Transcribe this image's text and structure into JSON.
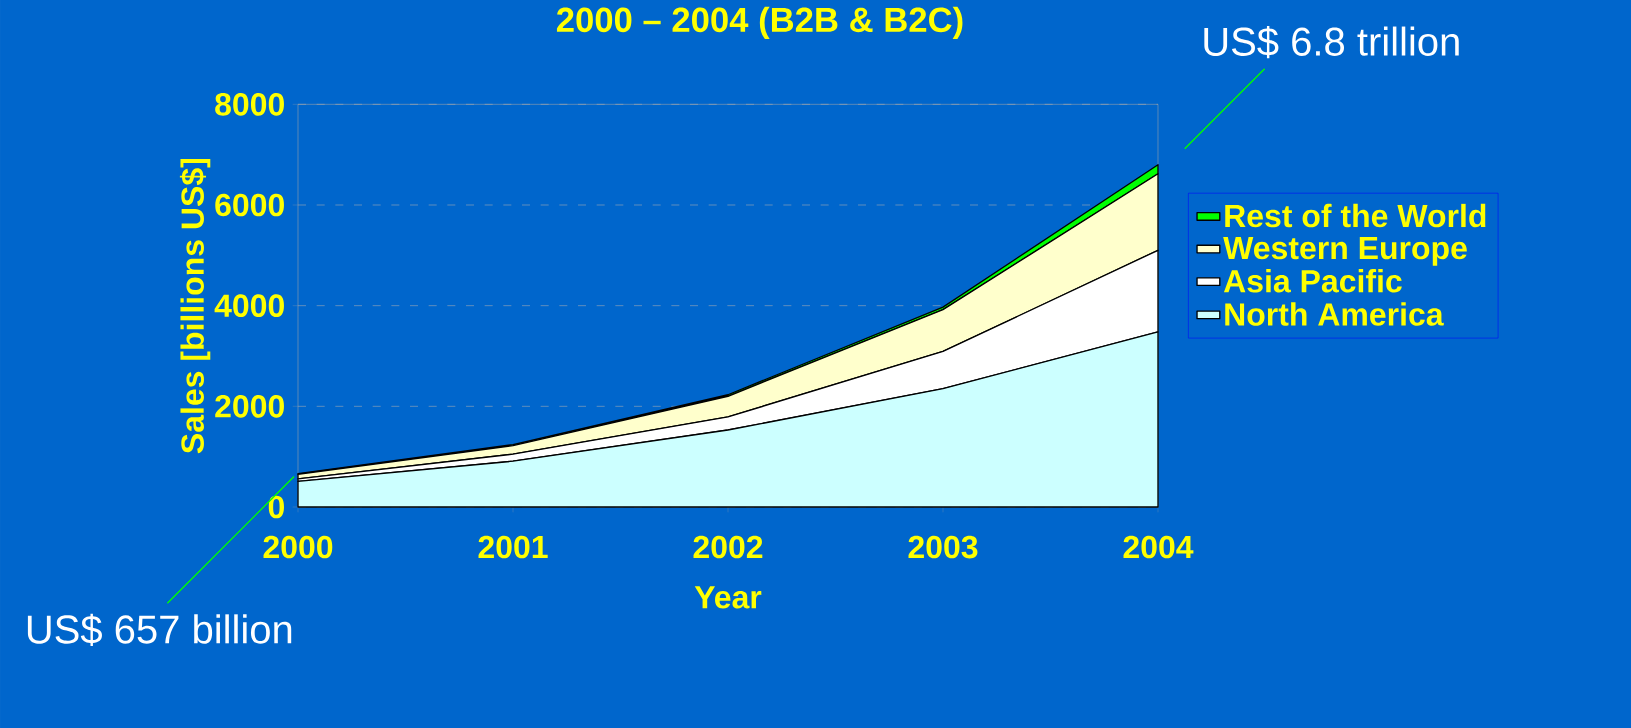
{
  "chart_data": {
    "type": "area",
    "title": "2000 – 2004 (B2B & B2C)",
    "xlabel": "Year",
    "ylabel": "Sales [billions US$]",
    "categories": [
      "2000",
      "2001",
      "2002",
      "2003",
      "2004"
    ],
    "stacked": true,
    "series": [
      {
        "name": "North America",
        "color": "#ccffff",
        "values": [
          510,
          910,
          1530,
          2350,
          3480
        ]
      },
      {
        "name": "Asia Pacific",
        "color": "#ffffff",
        "values": [
          50,
          140,
          260,
          740,
          1620
        ]
      },
      {
        "name": "Western Europe",
        "color": "#ffffcc",
        "values": [
          90,
          170,
          410,
          830,
          1520
        ]
      },
      {
        "name": "Rest of the World",
        "color": "#00ff00",
        "values": [
          10,
          20,
          30,
          50,
          180
        ]
      }
    ],
    "ylim": [
      0,
      8000
    ],
    "yticks": [
      0,
      2000,
      4000,
      6000,
      8000
    ],
    "grid": "y",
    "legend": "right",
    "annotations": [
      {
        "text": "US$ 657 billion",
        "x": "2000",
        "y": 657
      },
      {
        "text": "US$ 6.8 trillion",
        "x": "2004",
        "y": 6800
      }
    ]
  }
}
